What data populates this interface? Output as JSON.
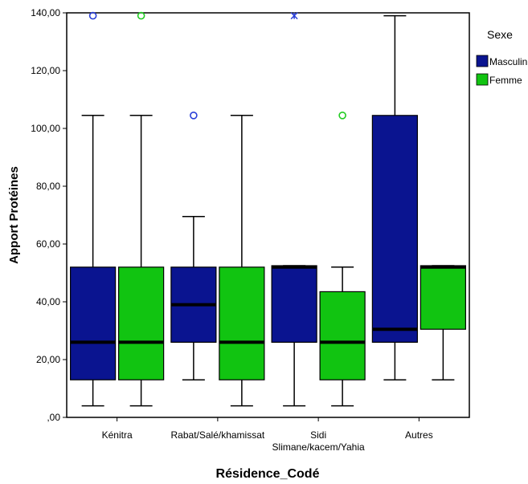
{
  "chart_data": {
    "type": "boxplot",
    "xlabel": "Résidence_Codé",
    "ylabel": "Apport Protéines",
    "ylim": [
      0,
      140
    ],
    "yticks": [
      0,
      20,
      40,
      60,
      80,
      100,
      120,
      140
    ],
    "ytick_labels": [
      ",00",
      "20,00",
      "40,00",
      "60,00",
      "80,00",
      "100,00",
      "120,00",
      "140,00"
    ],
    "categories": [
      {
        "label_lines": [
          "Kénitra"
        ]
      },
      {
        "label_lines": [
          "Rabat/Salé/khamissat"
        ]
      },
      {
        "label_lines": [
          "Sidi",
          "Slimane/kacem/Yahia"
        ]
      },
      {
        "label_lines": [
          "Autres"
        ]
      }
    ],
    "legend": {
      "title": "Sexe",
      "placement": "right",
      "entries": [
        {
          "name": "Masculin",
          "color": "#0a1490"
        },
        {
          "name": "Femme",
          "color": "#11c411"
        }
      ]
    },
    "colors": {
      "masculin_box": "#0a1490",
      "femme_box": "#11c411",
      "masculin_outlier": "#2a3fd8",
      "femme_outlier": "#22cc22",
      "whisker": "#000000",
      "median": "#000000"
    },
    "series": [
      {
        "name": "Masculin",
        "boxes": [
          {
            "min": 4,
            "q1": 13,
            "median": 26,
            "q3": 52,
            "max": 104.5,
            "outliers": [
              {
                "y": 139,
                "marker": "circle"
              }
            ]
          },
          {
            "min": 13,
            "q1": 26,
            "median": 39,
            "q3": 52,
            "max": 69.5,
            "outliers": [
              {
                "y": 104.5,
                "marker": "circle"
              }
            ]
          },
          {
            "min": 4,
            "q1": 26,
            "median": 52,
            "q3": 52.5,
            "max": 52.5,
            "outliers": [
              {
                "y": 139,
                "marker": "star"
              }
            ]
          },
          {
            "min": 13,
            "q1": 26,
            "median": 30.5,
            "q3": 104.5,
            "max": 139,
            "outliers": []
          }
        ]
      },
      {
        "name": "Femme",
        "boxes": [
          {
            "min": 4,
            "q1": 13,
            "median": 26,
            "q3": 52,
            "max": 104.5,
            "outliers": [
              {
                "y": 139,
                "marker": "circle"
              }
            ]
          },
          {
            "min": 4,
            "q1": 13,
            "median": 26,
            "q3": 52,
            "max": 104.5,
            "outliers": []
          },
          {
            "min": 4,
            "q1": 13,
            "median": 26,
            "q3": 43.5,
            "max": 52,
            "outliers": [
              {
                "y": 104.5,
                "marker": "circle"
              }
            ]
          },
          {
            "min": 13,
            "q1": 30.5,
            "median": 52,
            "q3": 52.5,
            "max": 52.5,
            "outliers": []
          }
        ]
      }
    ]
  }
}
